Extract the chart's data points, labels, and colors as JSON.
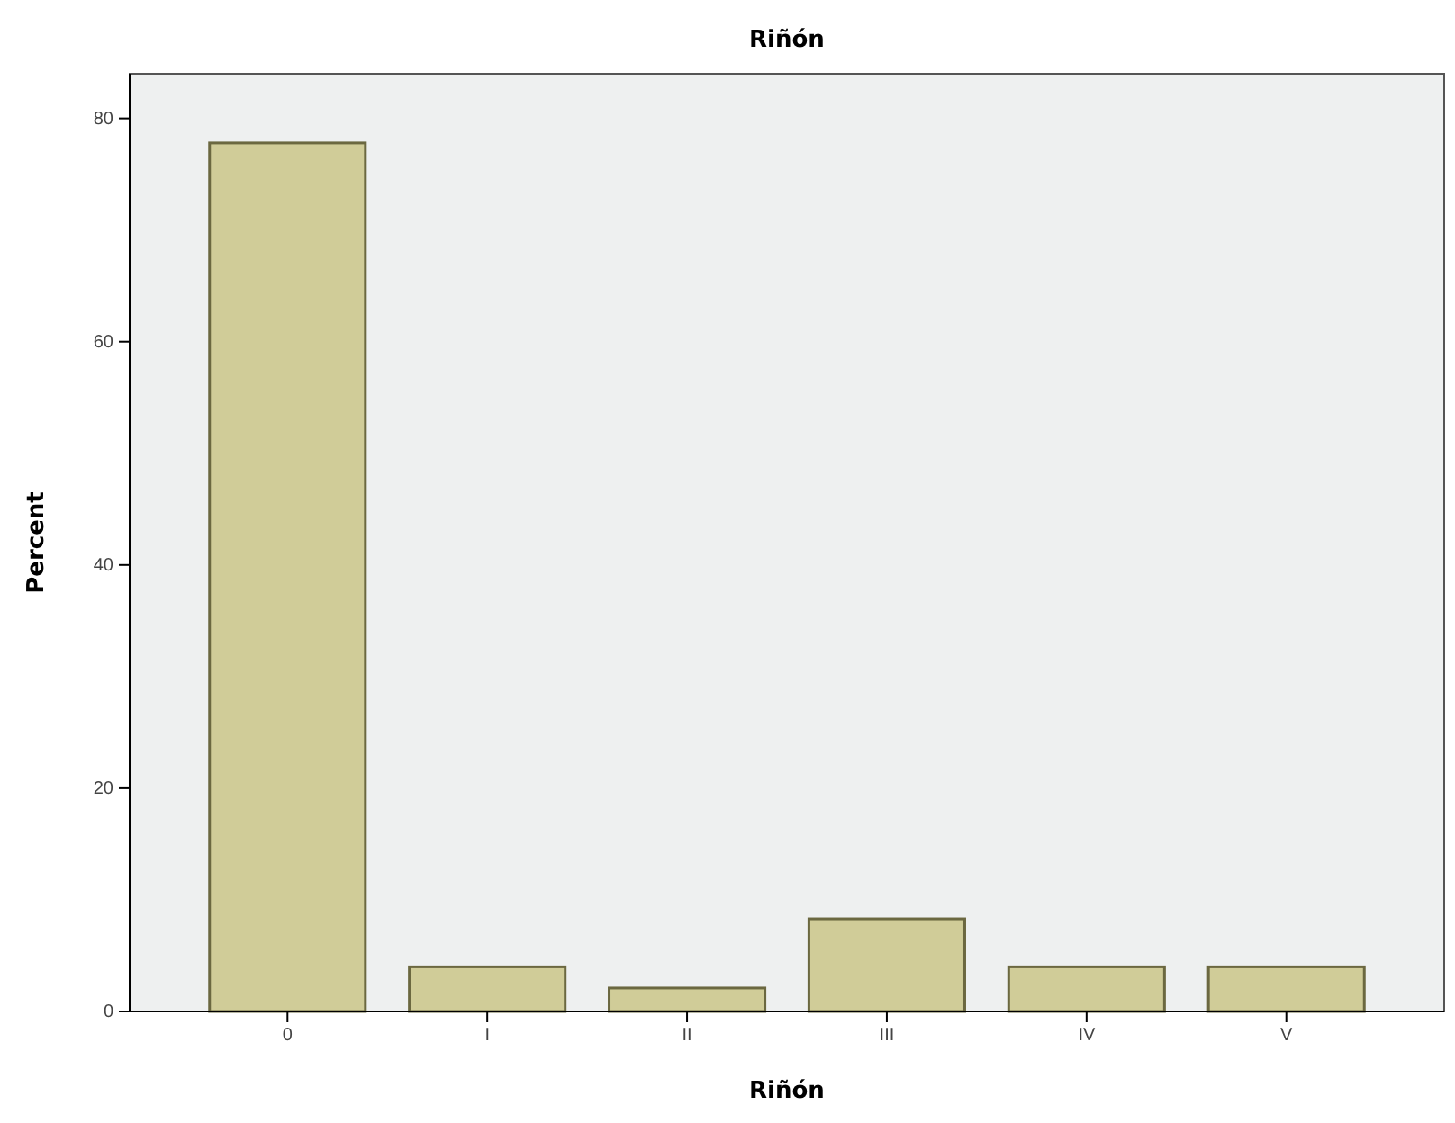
{
  "chart_data": {
    "type": "bar",
    "title": "Riñón",
    "xlabel": "Riñón",
    "ylabel": "Percent",
    "categories": [
      "0",
      "I",
      "II",
      "III",
      "IV",
      "V"
    ],
    "values": [
      77.8,
      4.0,
      2.1,
      8.3,
      4.0,
      4.0
    ],
    "color": "#d0cc98",
    "ylim": [
      0,
      84
    ],
    "yticks": [
      0,
      20,
      40,
      60,
      80
    ],
    "grid": false
  }
}
